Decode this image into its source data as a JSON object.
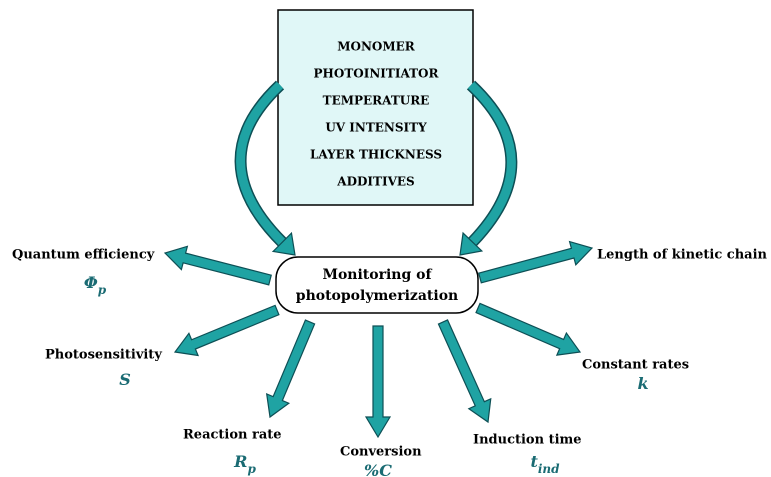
{
  "factors": [
    "MONOMER",
    "PHOTOINITIATOR",
    "TEMPERATURE",
    "UV INTENSITY",
    "LAYER THICKNESS",
    "ADDITIVES"
  ],
  "center": {
    "lines": [
      "Monitoring of",
      "photopolymerization"
    ]
  },
  "outputs": [
    {
      "label": "Quantum efficiency",
      "symbol": "Φ",
      "sub": "p"
    },
    {
      "label": "Photosensitivity",
      "symbol": "S"
    },
    {
      "label": "Reaction rate",
      "symbol": "R",
      "sub": "p"
    },
    {
      "label": "Conversion",
      "symbol": "%C"
    },
    {
      "label": "Induction time",
      "symbol": "t",
      "sub": "ind"
    },
    {
      "label": "Constant rates",
      "symbol": "k"
    },
    {
      "label": "Length of kinetic chain"
    }
  ]
}
